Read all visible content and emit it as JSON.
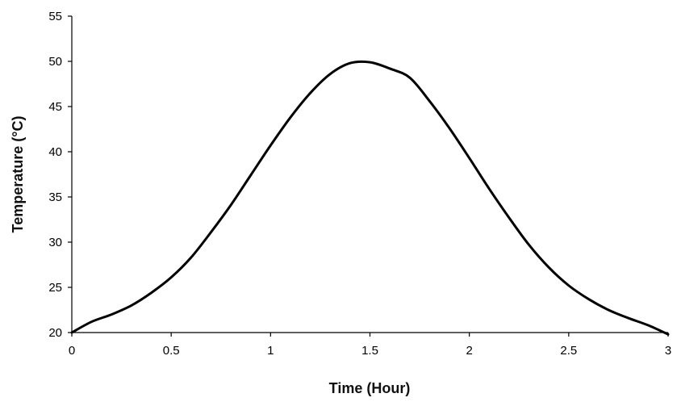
{
  "chart_data": {
    "type": "line",
    "xlabel": "Time (Hour)",
    "ylabel": "Temperature (°C)",
    "xlim": [
      0,
      3
    ],
    "ylim": [
      20,
      55
    ],
    "x_ticks": [
      "0",
      "0.5",
      "1",
      "1.5",
      "2",
      "2.5",
      "3"
    ],
    "y_ticks": [
      "20",
      "25",
      "30",
      "35",
      "40",
      "45",
      "50",
      "55"
    ],
    "grid": false,
    "legend": "none",
    "series": [
      {
        "color": "#000000",
        "x": [
          0,
          0.1,
          0.2,
          0.3,
          0.4,
          0.5,
          0.6,
          0.7,
          0.8,
          0.9,
          1.0,
          1.1,
          1.2,
          1.3,
          1.4,
          1.5,
          1.6,
          1.7,
          1.8,
          1.9,
          2.0,
          2.1,
          2.2,
          2.3,
          2.4,
          2.5,
          2.6,
          2.7,
          2.8,
          2.9,
          3.0
        ],
        "y": [
          20.0,
          21.2,
          22.0,
          23.0,
          24.4,
          26.1,
          28.3,
          31.1,
          34.1,
          37.4,
          40.7,
          43.8,
          46.5,
          48.6,
          49.8,
          49.9,
          49.2,
          48.2,
          45.6,
          42.6,
          39.3,
          35.9,
          32.7,
          29.7,
          27.2,
          25.2,
          23.7,
          22.5,
          21.6,
          20.8,
          19.8
        ]
      }
    ]
  }
}
